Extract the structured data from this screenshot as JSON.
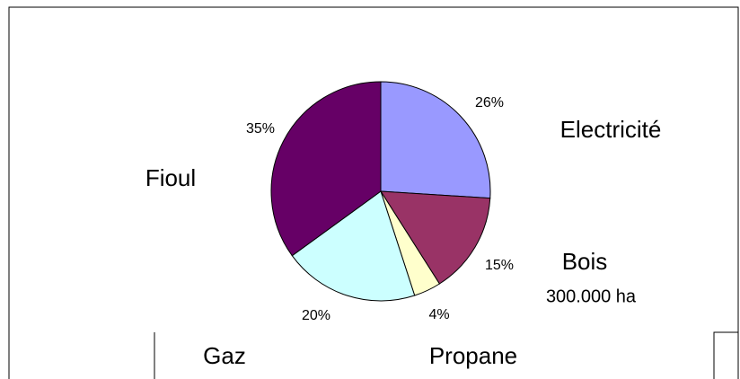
{
  "chart_data": {
    "type": "pie",
    "categories": [
      "Electricité",
      "Bois",
      "Propane",
      "Gaz",
      "Fioul"
    ],
    "values": [
      26,
      15,
      4,
      20,
      35
    ],
    "value_labels": [
      "26%",
      "15%",
      "4%",
      "20%",
      "35%"
    ],
    "colors": [
      "#9999ff",
      "#993366",
      "#ffffcc",
      "#ccffff",
      "#660066"
    ],
    "annotation": "300.000 ha"
  }
}
